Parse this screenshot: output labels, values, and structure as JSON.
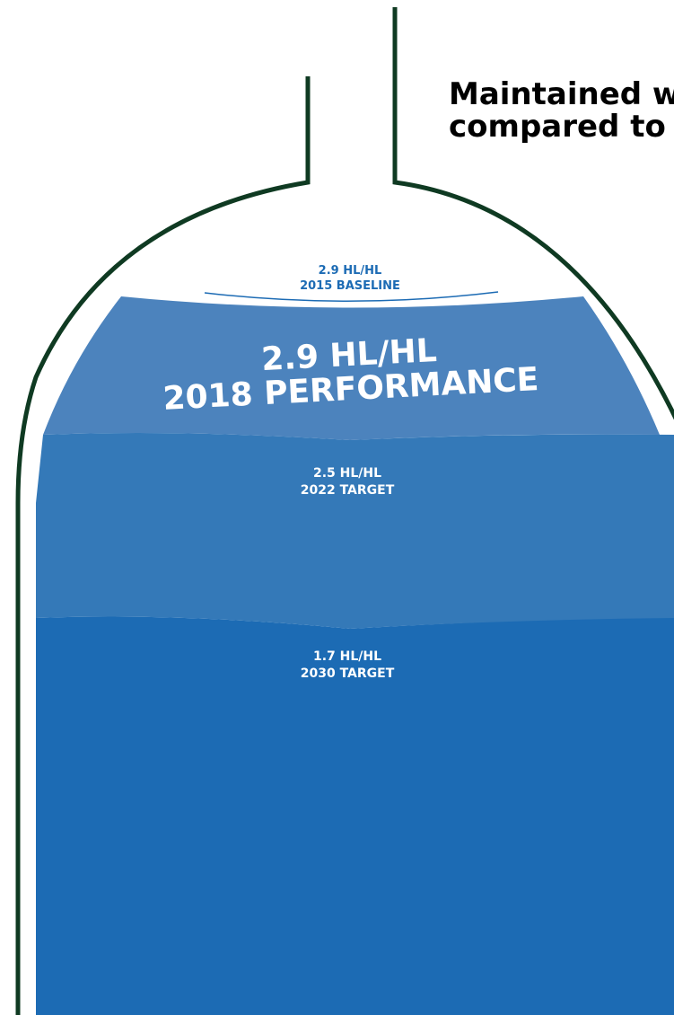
{
  "header": {
    "lines": [
      "Maintained w",
      "compared to"
    ]
  },
  "levels": [
    {
      "value": "2.9 HL/HL",
      "label": "2015 BASELINE"
    },
    {
      "value": "2.9 HL/HL",
      "label": "2018 PERFORMANCE"
    },
    {
      "value": "2.5 HL/HL",
      "label": "2022 TARGET"
    },
    {
      "value": "1.7 HL/HL",
      "label": "2030 TARGET"
    }
  ]
}
